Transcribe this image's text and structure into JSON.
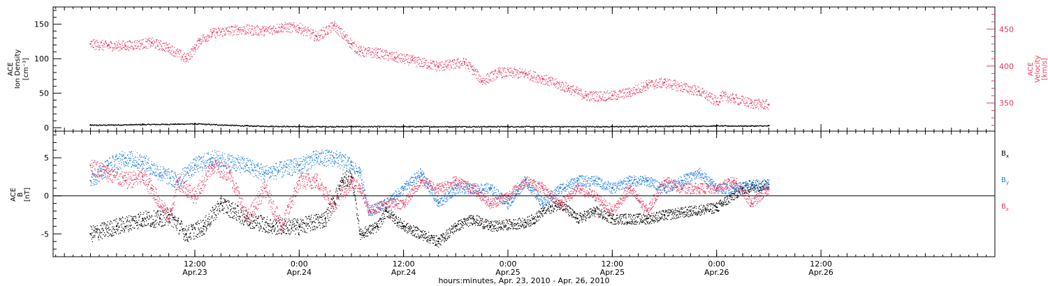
{
  "colors": {
    "black": "#000000",
    "pink": "#e8395f",
    "blue": "#1c7fe0"
  },
  "chart_data": [
    {
      "type": "scatter",
      "panel": "top",
      "ylabel_lines": [
        "ACE",
        "Ion Density"
      ],
      "yunit": "[cm⁻³]",
      "ylim": [
        -5,
        175
      ],
      "yticks": [
        0,
        50,
        100,
        150
      ],
      "yticklabels": [
        "0",
        "50",
        "100",
        "150"
      ],
      "y2label_lines": [
        "ACE",
        "Velocity",
        "[km/s]"
      ],
      "y2lim": [
        312,
        480
      ],
      "y2ticks": [
        350,
        400,
        450
      ],
      "y2ticklabels": [
        "350",
        "400",
        "450"
      ],
      "series": [
        {
          "color": "#000000",
          "axis": "left",
          "x_hours": [
            0,
            6,
            12,
            18,
            24,
            30,
            36,
            48,
            60,
            72,
            78
          ],
          "values": [
            4,
            5,
            6,
            3,
            2,
            2,
            2,
            2,
            2,
            3,
            3
          ]
        },
        {
          "color": "#e8395f",
          "axis": "right",
          "x_hours": [
            0,
            2,
            4,
            7,
            9,
            11,
            12,
            12.5,
            14,
            17,
            20,
            22,
            24,
            26,
            28,
            30,
            31,
            33,
            35,
            37,
            40,
            43,
            44,
            45,
            47,
            50,
            52,
            55,
            57,
            60,
            62,
            64,
            66,
            70,
            72,
            72.5,
            74,
            76,
            78
          ],
          "values": [
            430,
            428,
            428,
            432,
            425,
            410,
            425,
            435,
            445,
            450,
            448,
            453,
            452,
            440,
            455,
            430,
            420,
            418,
            412,
            408,
            400,
            405,
            395,
            380,
            392,
            390,
            383,
            370,
            360,
            360,
            365,
            375,
            378,
            366,
            352,
            360,
            356,
            350,
            348
          ]
        }
      ]
    },
    {
      "type": "scatter",
      "panel": "bottom",
      "ylabel_lines": [
        "ACE",
        "B"
      ],
      "yunit": "[nT]",
      "ylim": [
        -8,
        8.5
      ],
      "yticks": [
        -5,
        0,
        5
      ],
      "yticklabels": [
        "-5",
        "0",
        "5"
      ],
      "series": [
        {
          "name": "Bx",
          "color": "#000000",
          "x_hours": [
            0,
            3,
            6,
            8,
            9,
            11,
            13,
            15,
            18,
            21,
            24,
            27,
            29,
            30,
            31,
            33,
            34,
            36,
            40,
            42,
            44,
            46,
            50,
            51,
            52,
            54,
            56,
            58,
            60,
            64,
            66,
            69,
            72,
            75,
            78
          ],
          "values": [
            -5,
            -4,
            -3,
            -3,
            -2.5,
            -5,
            -4,
            -1,
            -3,
            -4,
            -4,
            -3,
            2,
            2.5,
            -5,
            -4,
            -2,
            -4,
            -6,
            -4,
            -3,
            -4,
            -3.5,
            -3,
            -2,
            -1,
            -3,
            -2,
            -3,
            -3,
            -2.5,
            -2,
            -1.5,
            1,
            1.5
          ]
        },
        {
          "name": "By",
          "color": "#1c7fe0",
          "x_hours": [
            0,
            2,
            4,
            6,
            8,
            10,
            12,
            14,
            18,
            20,
            24,
            26,
            28,
            30,
            31,
            32,
            34,
            36,
            38,
            40,
            42,
            44,
            46,
            48,
            50,
            52,
            54,
            56,
            58,
            60,
            62,
            64,
            66,
            68,
            70,
            72,
            74,
            76,
            78
          ],
          "values": [
            2,
            4,
            5,
            4.5,
            3,
            2,
            4,
            5,
            4,
            3,
            4,
            5,
            5,
            4,
            3,
            -2,
            -1,
            1,
            3,
            -1,
            1,
            1,
            1,
            -1,
            2,
            -1,
            1,
            2,
            2,
            1,
            2,
            2,
            1,
            2,
            3,
            1,
            1,
            1.5,
            1.5
          ]
        },
        {
          "name": "Bz",
          "color": "#e8395f",
          "x_hours": [
            0,
            2,
            4,
            6,
            7,
            9,
            10,
            12,
            14,
            16,
            18,
            20,
            22,
            24,
            26,
            28,
            30,
            31,
            32,
            34,
            36,
            38,
            40,
            42,
            44,
            46,
            48,
            50,
            52,
            54,
            56,
            58,
            60,
            62,
            64,
            66,
            68,
            70,
            72,
            74,
            76,
            78
          ],
          "values": [
            4,
            3,
            2,
            2.5,
            1,
            -3,
            2,
            0,
            4,
            3,
            -3,
            1,
            -4,
            2,
            2,
            -1,
            2,
            1,
            -2,
            -1,
            -1,
            2,
            1,
            2,
            1,
            -1,
            0,
            2,
            1,
            -1,
            1,
            0,
            -2,
            1,
            -2,
            2,
            1,
            1,
            1,
            2,
            -1,
            1
          ]
        }
      ],
      "series_labels": [
        {
          "text": "B",
          "sub": "x",
          "color": "#000000"
        },
        {
          "text": "B",
          "sub": "y",
          "color": "#1c7fe0"
        },
        {
          "text": "B",
          "sub": "z",
          "color": "#e8395f"
        }
      ]
    }
  ],
  "xaxis": {
    "range_hours": [
      -4.3,
      104
    ],
    "ticks": [
      {
        "h": 12,
        "top": "12:00",
        "bottom": "Apr.23"
      },
      {
        "h": 24,
        "top": "0:00",
        "bottom": "Apr.24"
      },
      {
        "h": 36,
        "top": "12:00",
        "bottom": "Apr.24"
      },
      {
        "h": 48,
        "top": "0:00",
        "bottom": "Apr.25"
      },
      {
        "h": 60,
        "top": "12:00",
        "bottom": "Apr.25"
      },
      {
        "h": 72,
        "top": "0:00",
        "bottom": "Apr.26"
      },
      {
        "h": 84,
        "top": "12:00",
        "bottom": "Apr.26"
      }
    ],
    "title": "hours:minutes, Apr. 23, 2010 - Apr. 26, 2010"
  }
}
